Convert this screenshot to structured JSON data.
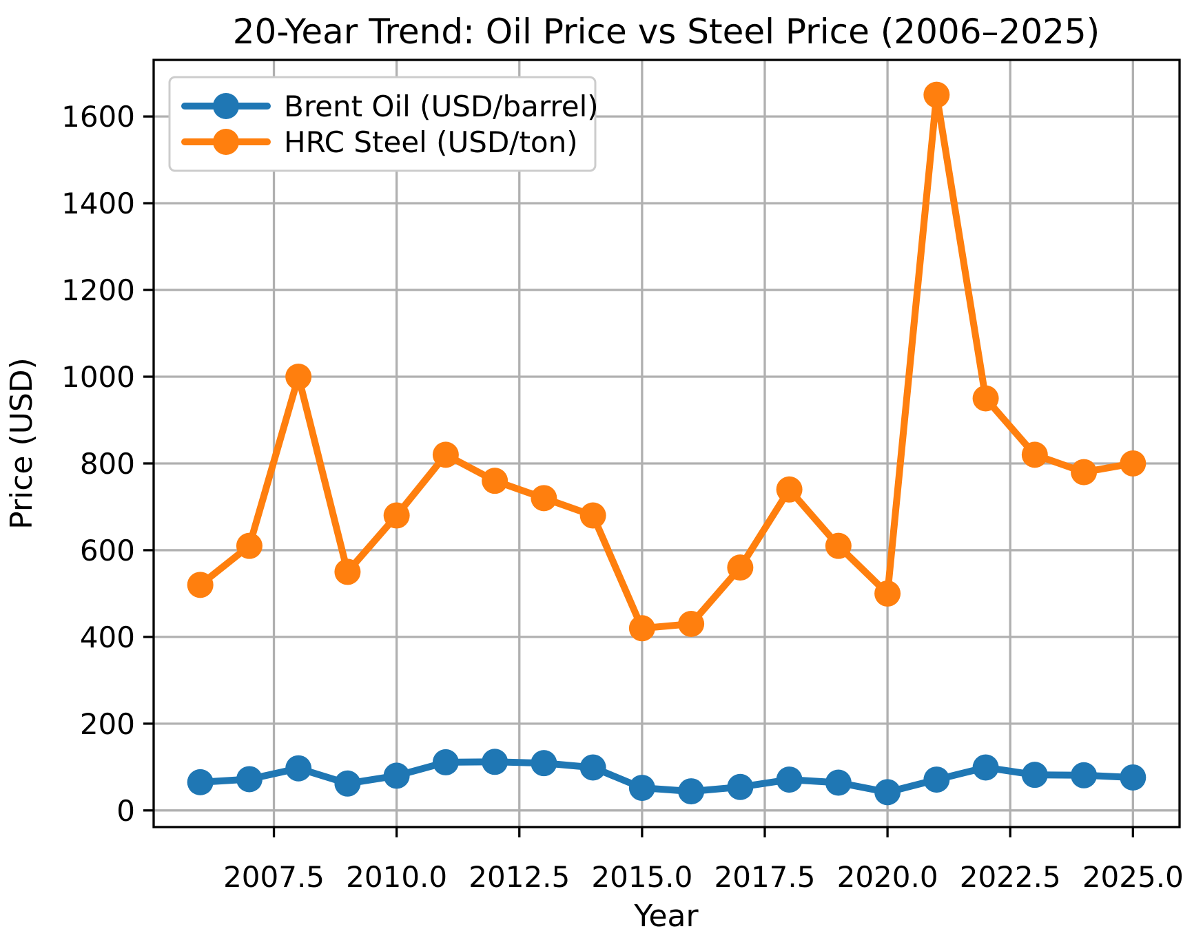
{
  "chart_data": {
    "type": "line",
    "title": "20-Year Trend: Oil Price vs Steel Price (2006–2025)",
    "xlabel": "Year",
    "ylabel": "Price (USD)",
    "x": [
      2006,
      2007,
      2008,
      2009,
      2010,
      2011,
      2012,
      2013,
      2014,
      2015,
      2016,
      2017,
      2018,
      2019,
      2020,
      2021,
      2022,
      2023,
      2024,
      2025
    ],
    "series": [
      {
        "name": "Brent Oil (USD/barrel)",
        "color": "#1f77b4",
        "values": [
          65,
          72,
          97,
          62,
          80,
          111,
          112,
          109,
          99,
          52,
          44,
          54,
          71,
          64,
          42,
          71,
          99,
          82,
          81,
          76
        ]
      },
      {
        "name": "HRC Steel (USD/ton)",
        "color": "#ff7f0e",
        "values": [
          520,
          610,
          1000,
          550,
          680,
          820,
          760,
          720,
          680,
          420,
          430,
          560,
          740,
          610,
          500,
          1650,
          950,
          820,
          780,
          800
        ]
      }
    ],
    "xlim": [
      2005.05,
      2025.95
    ],
    "ylim": [
      -38.4,
      1730.4
    ],
    "xticks": {
      "values": [
        2007.5,
        2010.0,
        2012.5,
        2015.0,
        2017.5,
        2020.0,
        2022.5,
        2025.0
      ],
      "labels": [
        "2007.5",
        "2010.0",
        "2012.5",
        "2015.0",
        "2017.5",
        "2020.0",
        "2022.5",
        "2025.0"
      ]
    },
    "yticks": {
      "values": [
        0,
        200,
        400,
        600,
        800,
        1000,
        1200,
        1400,
        1600
      ],
      "labels": [
        "0",
        "200",
        "400",
        "600",
        "800",
        "1000",
        "1200",
        "1400",
        "1600"
      ]
    },
    "grid": true,
    "legend_position": "upper left",
    "colors": {
      "grid": "#b0b0b0",
      "spine": "#000000",
      "background": "#ffffff",
      "legend_edge": "#cccccc",
      "legend_face": "#ffffff",
      "text": "#000000"
    }
  }
}
